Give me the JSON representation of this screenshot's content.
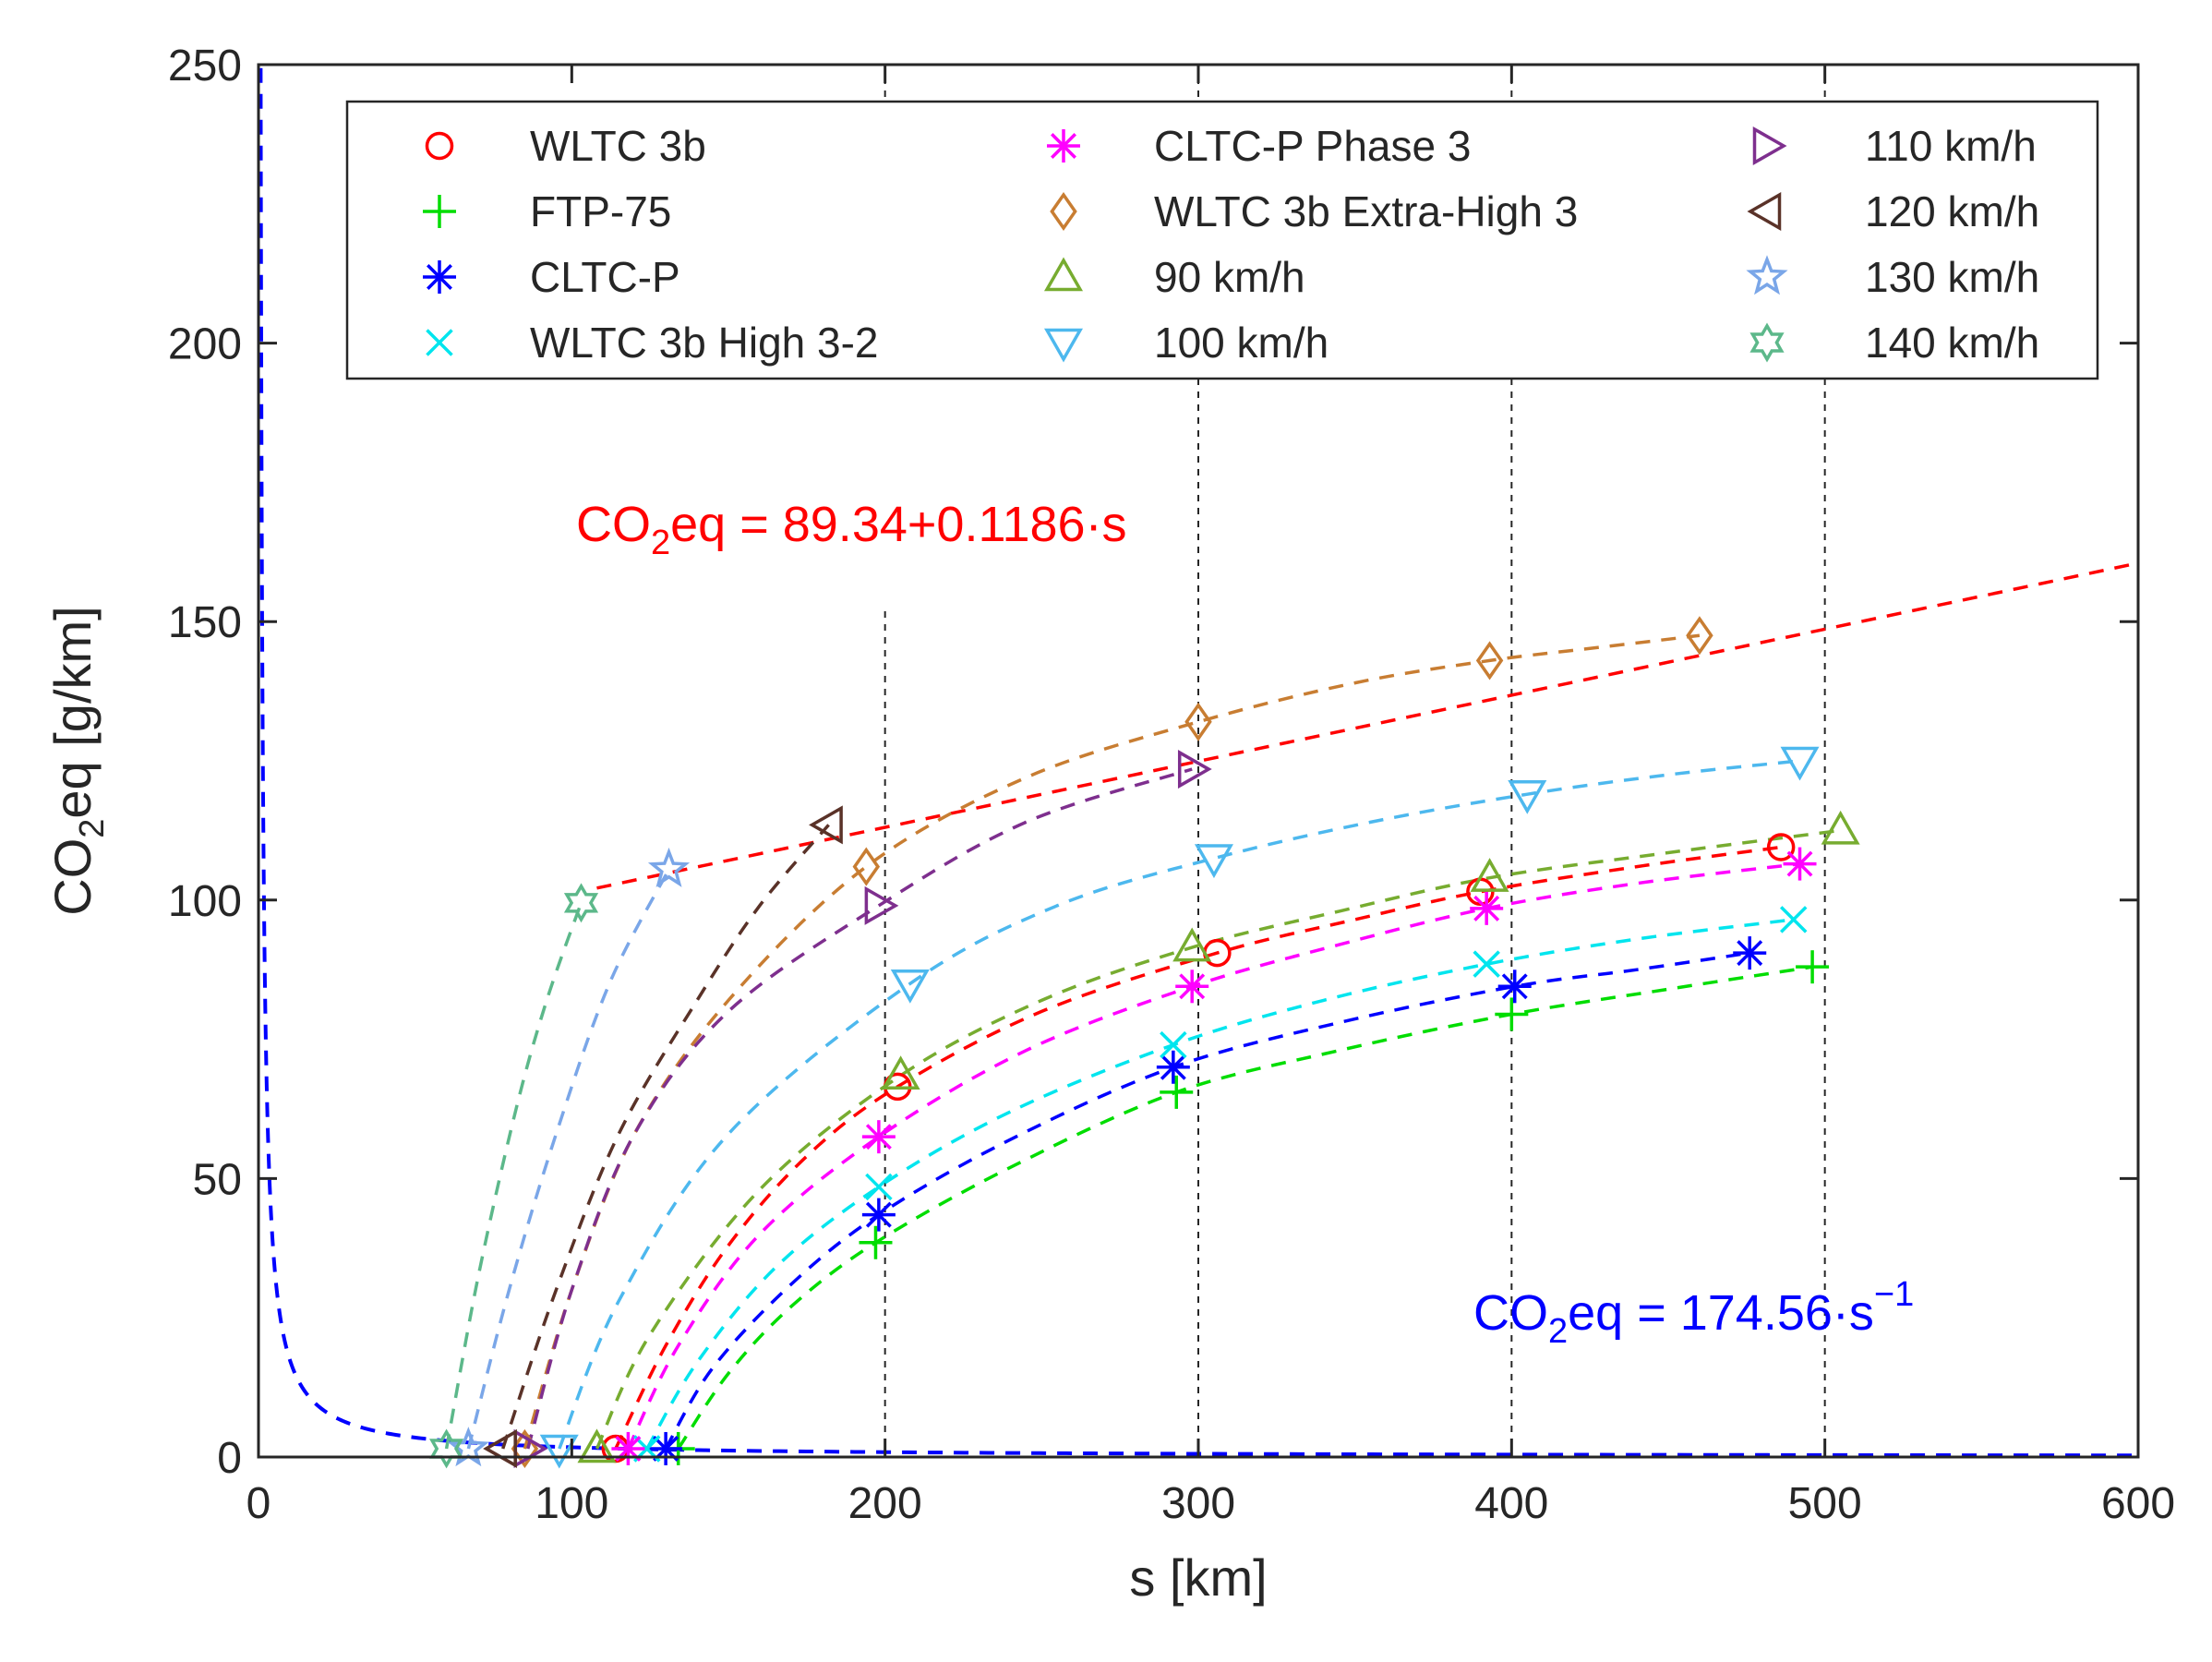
{
  "chart_data": {
    "type": "line",
    "xlabel": "s [km]",
    "ylabel_main": "CO",
    "ylabel_sub": "2",
    "ylabel_rest": "eq [g/km]",
    "xlim": [
      0,
      600
    ],
    "ylim": [
      0,
      250
    ],
    "xticks": [
      0,
      100,
      200,
      300,
      400,
      500,
      600
    ],
    "yticks": [
      0,
      50,
      100,
      150,
      200,
      250
    ],
    "grid": "vertical dashed lines at x = 200, 300, 400, 500",
    "legend_placement": "top",
    "series": [
      {
        "name": "WLTC 3b",
        "marker": "circle",
        "color": "#ff0000",
        "points": [
          [
            114,
            1.5
          ],
          [
            204,
            66.5
          ],
          [
            306,
            90.5
          ],
          [
            390,
            101.5
          ],
          [
            486,
            109.5
          ]
        ],
        "curve": [
          [
            114,
            1.5
          ],
          [
            130,
            20
          ],
          [
            150,
            38
          ],
          [
            175,
            54
          ],
          [
            204,
            66.5
          ],
          [
            250,
            80
          ],
          [
            306,
            90.5
          ],
          [
            350,
            96.5
          ],
          [
            390,
            101.5
          ],
          [
            440,
            106
          ],
          [
            486,
            109.5
          ]
        ]
      },
      {
        "name": "FTP-75",
        "marker": "plus",
        "color": "#00dd00",
        "points": [
          [
            134,
            1.5
          ],
          [
            197,
            38.5
          ],
          [
            293,
            65.5
          ],
          [
            400,
            79.5
          ],
          [
            496,
            88
          ]
        ],
        "curve": [
          [
            134,
            1.5
          ],
          [
            150,
            15
          ],
          [
            170,
            27
          ],
          [
            197,
            38.5
          ],
          [
            240,
            52
          ],
          [
            293,
            65.5
          ],
          [
            345,
            73
          ],
          [
            400,
            79.5
          ],
          [
            450,
            84
          ],
          [
            496,
            88
          ]
        ]
      },
      {
        "name": "CLTC-P",
        "marker": "asterisk",
        "color": "#0000ff",
        "points": [
          [
            130,
            1.5
          ],
          [
            198,
            43.5
          ],
          [
            292,
            70
          ],
          [
            401,
            84.5
          ],
          [
            476,
            90.5
          ]
        ],
        "curve": [
          [
            130,
            1.5
          ],
          [
            145,
            16
          ],
          [
            170,
            31
          ],
          [
            198,
            43.5
          ],
          [
            240,
            57
          ],
          [
            292,
            70
          ],
          [
            345,
            78
          ],
          [
            401,
            84.5
          ],
          [
            440,
            87.5
          ],
          [
            476,
            90.5
          ]
        ]
      },
      {
        "name": "WLTC 3b High 3-2",
        "marker": "x",
        "color": "#00e5ee",
        "points": [
          [
            124,
            1.5
          ],
          [
            198,
            48.5
          ],
          [
            292,
            74
          ],
          [
            392,
            88.5
          ],
          [
            490,
            96.5
          ]
        ],
        "curve": [
          [
            124,
            1.5
          ],
          [
            140,
            17
          ],
          [
            165,
            34
          ],
          [
            198,
            48.5
          ],
          [
            240,
            62
          ],
          [
            292,
            74
          ],
          [
            340,
            82
          ],
          [
            392,
            88.5
          ],
          [
            440,
            93
          ],
          [
            490,
            96.5
          ]
        ]
      },
      {
        "name": "CLTC-P Phase 3",
        "marker": "asterisk",
        "color": "#ff00ff",
        "points": [
          [
            118,
            1.5
          ],
          [
            198,
            57.5
          ],
          [
            298,
            84.5
          ],
          [
            392,
            98.5
          ],
          [
            492,
            106.5
          ]
        ],
        "curve": [
          [
            118,
            1.5
          ],
          [
            134,
            20
          ],
          [
            160,
            40
          ],
          [
            198,
            57.5
          ],
          [
            245,
            73
          ],
          [
            298,
            84.5
          ],
          [
            345,
            92
          ],
          [
            392,
            98.5
          ],
          [
            440,
            103
          ],
          [
            492,
            106.5
          ]
        ]
      },
      {
        "name": "WLTC 3b Extra-High 3",
        "marker": "diamond",
        "color": "#c87d32",
        "points": [
          [
            85,
            1.5
          ],
          [
            194,
            106
          ],
          [
            300,
            132
          ],
          [
            393,
            143
          ],
          [
            460,
            147.5
          ]
        ],
        "curve": [
          [
            85,
            1.5
          ],
          [
            100,
            30
          ],
          [
            120,
            58
          ],
          [
            150,
            82
          ],
          [
            194,
            106
          ],
          [
            245,
            122
          ],
          [
            300,
            132
          ],
          [
            350,
            139
          ],
          [
            393,
            143
          ],
          [
            430,
            145.5
          ],
          [
            460,
            147.5
          ]
        ]
      },
      {
        "name": "90 km/h",
        "marker": "triangle-up",
        "color": "#77ac30",
        "points": [
          [
            108,
            1.5
          ],
          [
            205,
            68.5
          ],
          [
            298,
            91.5
          ],
          [
            393,
            104
          ],
          [
            505,
            112.5
          ]
        ],
        "curve": [
          [
            108,
            1.5
          ],
          [
            125,
            22
          ],
          [
            160,
            48
          ],
          [
            205,
            68.5
          ],
          [
            250,
            82
          ],
          [
            298,
            91.5
          ],
          [
            345,
            98
          ],
          [
            393,
            104
          ],
          [
            450,
            108.5
          ],
          [
            505,
            112.5
          ]
        ]
      },
      {
        "name": "100 km/h",
        "marker": "triangle-down",
        "color": "#4db8ee",
        "points": [
          [
            96,
            1.5
          ],
          [
            208,
            85
          ],
          [
            305,
            107.5
          ],
          [
            405,
            119
          ],
          [
            492,
            125
          ]
        ],
        "curve": [
          [
            96,
            1.5
          ],
          [
            115,
            28
          ],
          [
            150,
            58
          ],
          [
            208,
            85
          ],
          [
            255,
            99
          ],
          [
            305,
            107.5
          ],
          [
            355,
            114
          ],
          [
            405,
            119
          ],
          [
            450,
            122.5
          ],
          [
            492,
            125
          ]
        ]
      },
      {
        "name": "110 km/h",
        "marker": "triangle-right",
        "color": "#7e2f8e",
        "points": [
          [
            86,
            1.5
          ],
          [
            198,
            99
          ],
          [
            298,
            123.5
          ]
        ],
        "curve": [
          [
            86,
            1.5
          ],
          [
            100,
            30
          ],
          [
            120,
            58
          ],
          [
            150,
            80
          ],
          [
            198,
            99
          ],
          [
            245,
            114
          ],
          [
            298,
            123.5
          ]
        ]
      },
      {
        "name": "120 km/h",
        "marker": "triangle-left",
        "color": "#5a3228",
        "points": [
          [
            78,
            1.5
          ],
          [
            182,
            113.5
          ]
        ],
        "curve": [
          [
            78,
            1.5
          ],
          [
            95,
            30
          ],
          [
            115,
            58
          ],
          [
            140,
            82
          ],
          [
            160,
            99
          ],
          [
            182,
            113.5
          ]
        ]
      },
      {
        "name": "130 km/h",
        "marker": "star5",
        "color": "#7aa6e8",
        "points": [
          [
            67,
            1.5
          ],
          [
            131,
            105.5
          ]
        ],
        "curve": [
          [
            67,
            1.5
          ],
          [
            80,
            30
          ],
          [
            95,
            58
          ],
          [
            112,
            85
          ],
          [
            131,
            105.5
          ]
        ]
      },
      {
        "name": "140 km/h",
        "marker": "star6",
        "color": "#5cb88a",
        "points": [
          [
            60,
            1.5
          ],
          [
            103,
            99.5
          ]
        ],
        "curve": [
          [
            60,
            1.5
          ],
          [
            70,
            32
          ],
          [
            82,
            62
          ],
          [
            92,
            82
          ],
          [
            103,
            99.5
          ]
        ]
      }
    ],
    "fits": [
      {
        "label_main": "CO",
        "label_sub": "2",
        "label_rest": "eq = 89.34+0.1186·s",
        "color": "#ff0000",
        "a": 89.34,
        "b": 0.1186,
        "x_start": 108,
        "x_end": 600
      },
      {
        "label_main": "CO",
        "label_sub": "2",
        "label_rest": "eq = 174.56·s",
        "label_sup": "−1",
        "color": "#0000ff",
        "k": 174.56,
        "x_start": 0.7,
        "x_end": 600
      }
    ]
  }
}
